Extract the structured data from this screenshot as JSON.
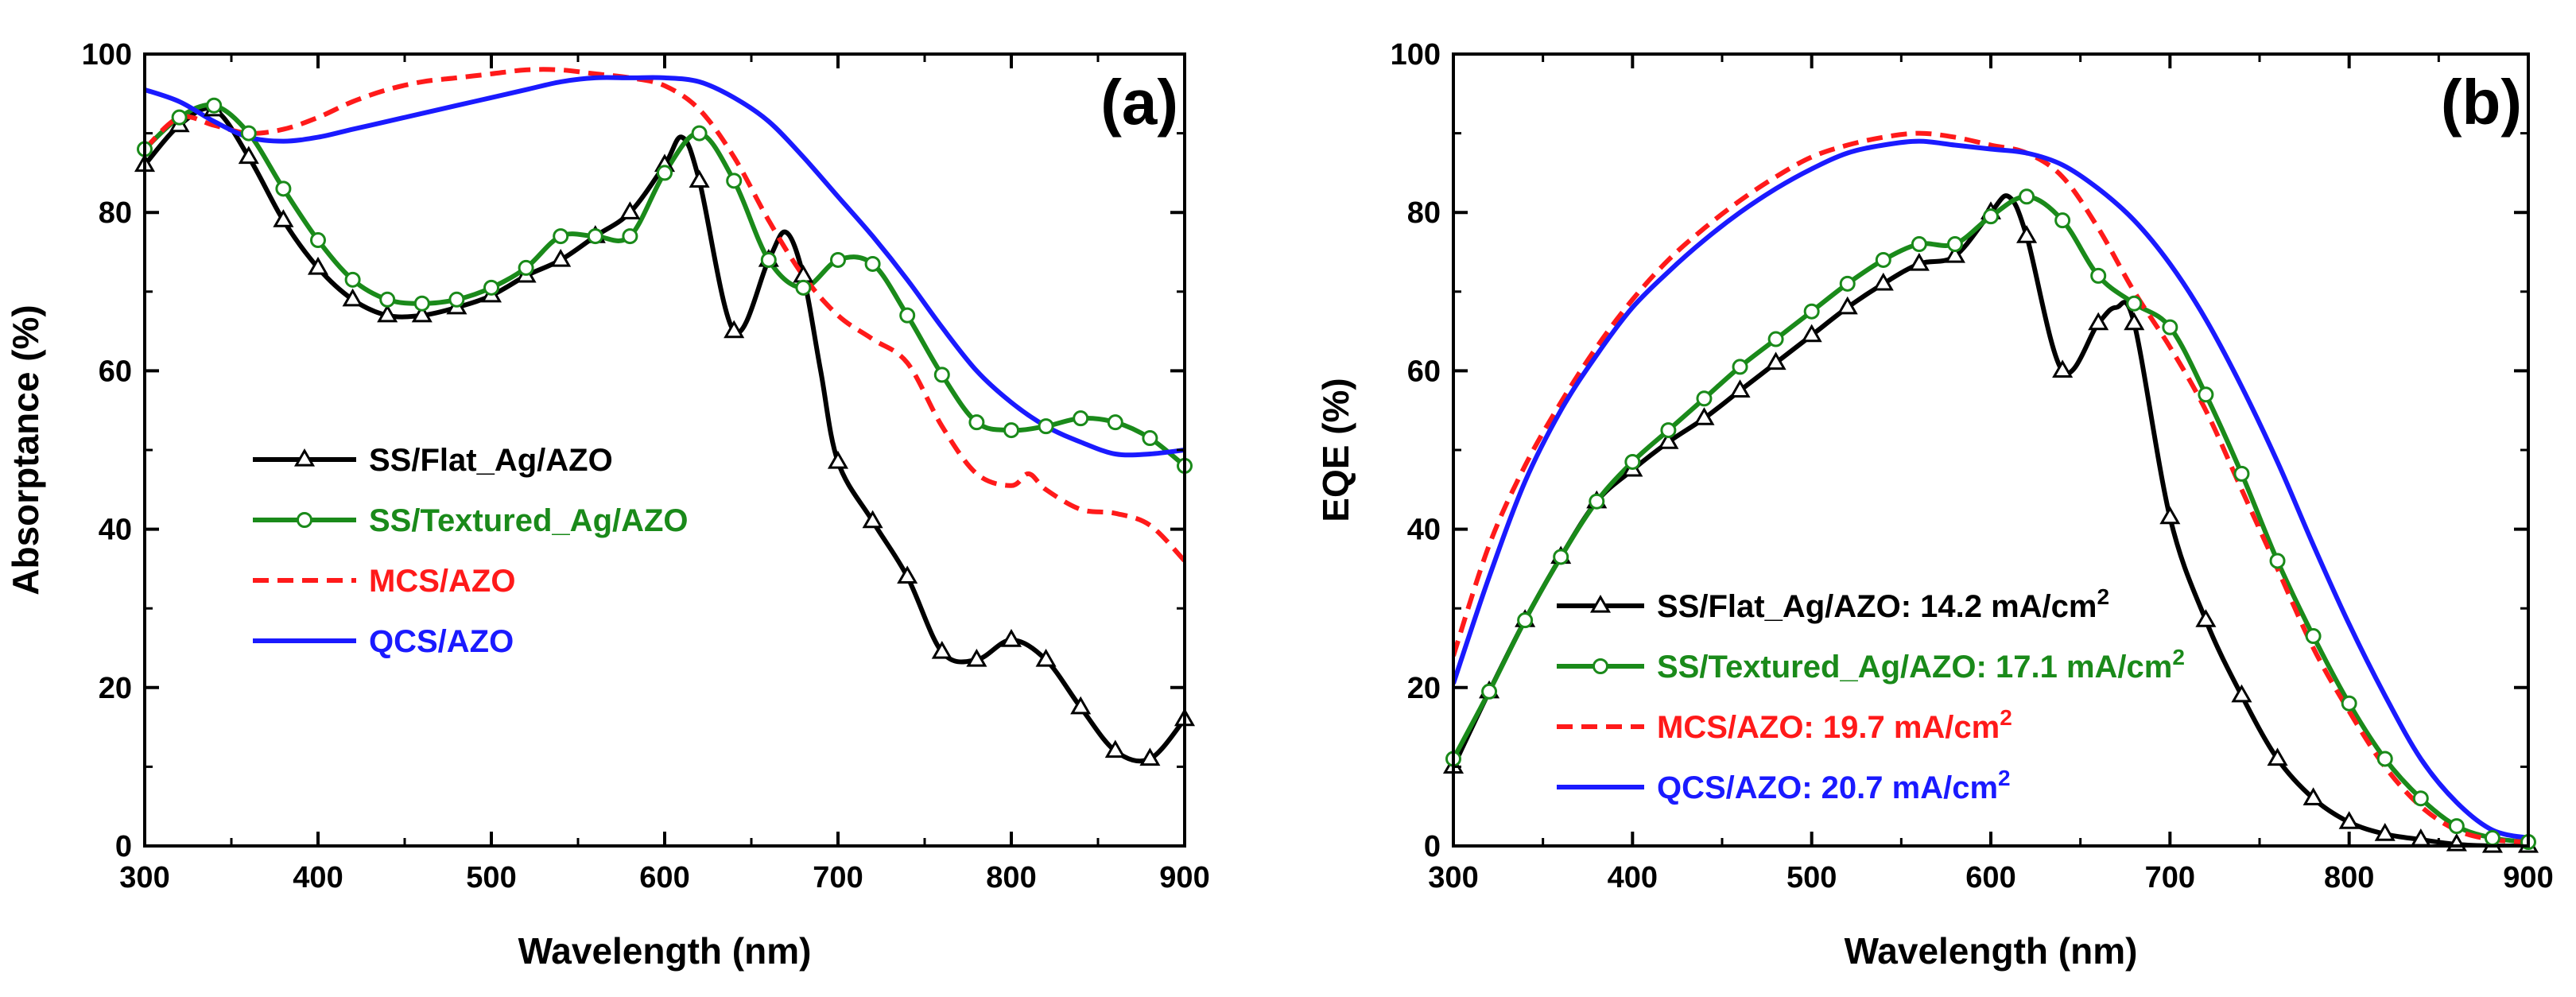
{
  "chart_data": [
    {
      "type": "line",
      "panel_label": "(a)",
      "xlabel": "Wavelength (nm)",
      "ylabel": "Absorptance (%)",
      "xlim": [
        300,
        900
      ],
      "ylim": [
        0,
        100
      ],
      "x_ticks": [
        300,
        400,
        500,
        600,
        700,
        800,
        900
      ],
      "y_ticks": [
        0,
        20,
        40,
        60,
        80,
        100
      ],
      "legend_position": "left-center",
      "series": [
        {
          "name": "SS/Flat_Ag/AZO",
          "color": "#000000",
          "dash": "solid",
          "marker": "triangle",
          "x": [
            300,
            320,
            340,
            360,
            380,
            400,
            420,
            440,
            460,
            480,
            500,
            520,
            540,
            560,
            580,
            600,
            610,
            620,
            640,
            660,
            670,
            680,
            690,
            700,
            720,
            740,
            760,
            780,
            800,
            820,
            840,
            860,
            880,
            900
          ],
          "y": [
            86,
            91,
            93,
            87,
            79,
            73,
            69,
            67,
            67,
            68,
            69.5,
            72,
            74,
            77,
            80,
            86,
            89.5,
            84,
            65,
            74,
            77.5,
            72,
            60,
            48.5,
            41,
            34,
            24.5,
            23.5,
            26,
            23.5,
            17.5,
            12,
            11,
            16
          ]
        },
        {
          "name": "SS/Textured_Ag/AZO",
          "color": "#1a8a1a",
          "dash": "solid",
          "marker": "circle",
          "x": [
            300,
            320,
            340,
            360,
            380,
            400,
            420,
            440,
            460,
            480,
            500,
            520,
            540,
            560,
            580,
            600,
            620,
            640,
            660,
            680,
            700,
            720,
            740,
            760,
            780,
            800,
            820,
            840,
            860,
            880,
            900
          ],
          "y": [
            88,
            92,
            93.5,
            90,
            83,
            76.5,
            71.5,
            69,
            68.5,
            69,
            70.5,
            73,
            77,
            77,
            77,
            85,
            90,
            84,
            74,
            70.5,
            74,
            73.5,
            67,
            59.5,
            53.5,
            52.5,
            53,
            54,
            53.5,
            51.5,
            48
          ]
        },
        {
          "name": "MCS/AZO",
          "color": "#ff1a1a",
          "dash": "dashed",
          "marker": "none",
          "x": [
            300,
            320,
            340,
            360,
            380,
            400,
            420,
            440,
            460,
            480,
            500,
            520,
            540,
            560,
            580,
            600,
            620,
            640,
            660,
            680,
            700,
            720,
            740,
            760,
            780,
            800,
            810,
            820,
            840,
            860,
            880,
            900
          ],
          "y": [
            88,
            92,
            91,
            90,
            90.5,
            92,
            94,
            95.5,
            96.5,
            97,
            97.5,
            98,
            98,
            97.5,
            97,
            96,
            93,
            87,
            79,
            72,
            67,
            64,
            61,
            53,
            47,
            45.5,
            47,
            45,
            42.5,
            42,
            40.5,
            36
          ]
        },
        {
          "name": "QCS/AZO",
          "color": "#1a1aff",
          "dash": "solid",
          "marker": "none",
          "x": [
            300,
            320,
            340,
            360,
            380,
            400,
            420,
            440,
            460,
            480,
            500,
            520,
            540,
            560,
            580,
            600,
            620,
            640,
            660,
            680,
            700,
            720,
            740,
            760,
            780,
            800,
            820,
            840,
            860,
            880,
            900
          ],
          "y": [
            95.5,
            94,
            91.5,
            89.5,
            89,
            89.5,
            90.5,
            91.5,
            92.5,
            93.5,
            94.5,
            95.5,
            96.5,
            97,
            97,
            97,
            96.5,
            94.5,
            91.5,
            87,
            82,
            77,
            71.5,
            65.5,
            60,
            56,
            53,
            51,
            49.5,
            49.5,
            50
          ]
        }
      ]
    },
    {
      "type": "line",
      "panel_label": "(b)",
      "xlabel": "Wavelength (nm)",
      "ylabel": "EQE  (%)",
      "xlim": [
        300,
        900
      ],
      "ylim": [
        0,
        100
      ],
      "x_ticks": [
        300,
        400,
        500,
        600,
        700,
        800,
        900
      ],
      "y_ticks": [
        0,
        20,
        40,
        60,
        80,
        100
      ],
      "legend_position": "bottom-left",
      "series": [
        {
          "name": "SS/Flat_Ag/AZO",
          "label_suffix": ": 14.2 mA/cm",
          "superscript": "2",
          "color": "#000000",
          "dash": "solid",
          "marker": "triangle",
          "x": [
            300,
            320,
            340,
            360,
            380,
            400,
            420,
            440,
            460,
            480,
            500,
            520,
            540,
            560,
            580,
            600,
            610,
            620,
            640,
            660,
            670,
            680,
            700,
            720,
            740,
            760,
            780,
            800,
            820,
            840,
            860,
            880,
            900
          ],
          "y": [
            10,
            19.5,
            28.5,
            36.5,
            43.5,
            47.5,
            51,
            54,
            57.5,
            61,
            64.5,
            68,
            71,
            73.5,
            74.5,
            80,
            82,
            77,
            60,
            66,
            68,
            66,
            41.5,
            28.5,
            19,
            11,
            6,
            3,
            1.5,
            0.8,
            0.2,
            0,
            0
          ]
        },
        {
          "name": "SS/Textured_Ag/AZO",
          "label_suffix": ": 17.1 mA/cm",
          "superscript": "2",
          "color": "#1a8a1a",
          "dash": "solid",
          "marker": "circle",
          "x": [
            300,
            320,
            340,
            360,
            380,
            400,
            420,
            440,
            460,
            480,
            500,
            520,
            540,
            560,
            580,
            600,
            620,
            640,
            660,
            680,
            700,
            720,
            740,
            760,
            780,
            800,
            820,
            840,
            860,
            880,
            900
          ],
          "y": [
            11,
            19.5,
            28.5,
            36.5,
            43.5,
            48.5,
            52.5,
            56.5,
            60.5,
            64,
            67.5,
            71,
            74,
            76,
            76,
            79.5,
            82,
            79,
            72,
            68.5,
            65.5,
            57,
            47,
            36,
            26.5,
            18,
            11,
            6,
            2.5,
            1,
            0.5
          ]
        },
        {
          "name": "MCS/AZO",
          "label_suffix": ": 19.7 mA/cm",
          "superscript": "2",
          "color": "#ff1a1a",
          "dash": "dashed",
          "marker": "none",
          "x": [
            300,
            320,
            340,
            360,
            380,
            400,
            420,
            440,
            460,
            480,
            500,
            520,
            540,
            560,
            580,
            600,
            620,
            640,
            660,
            680,
            700,
            720,
            740,
            760,
            780,
            800,
            820,
            840,
            860,
            880,
            900
          ],
          "y": [
            24,
            38,
            48,
            56,
            63,
            69,
            74,
            78,
            81.5,
            84.5,
            87,
            88.5,
            89.5,
            90,
            89.5,
            88.5,
            87.5,
            84.5,
            78,
            70,
            63,
            55,
            45,
            35,
            25,
            17,
            10,
            5,
            2,
            0.8,
            0.5
          ]
        },
        {
          "name": "QCS/AZO",
          "label_suffix": ": 20.7 mA/cm",
          "superscript": "2",
          "color": "#1a1aff",
          "dash": "solid",
          "marker": "none",
          "x": [
            300,
            320,
            340,
            360,
            380,
            400,
            420,
            440,
            460,
            480,
            500,
            520,
            540,
            560,
            580,
            600,
            620,
            640,
            660,
            680,
            700,
            720,
            740,
            760,
            780,
            800,
            820,
            840,
            860,
            880,
            900
          ],
          "y": [
            20.5,
            34,
            46,
            55,
            62,
            68,
            72.5,
            76.5,
            80,
            83,
            85.5,
            87.5,
            88.5,
            89,
            88.5,
            88,
            87.5,
            86,
            83,
            79,
            73.5,
            66.5,
            58,
            48.5,
            38,
            28,
            19,
            11,
            5.5,
            2,
            1
          ]
        }
      ]
    }
  ]
}
